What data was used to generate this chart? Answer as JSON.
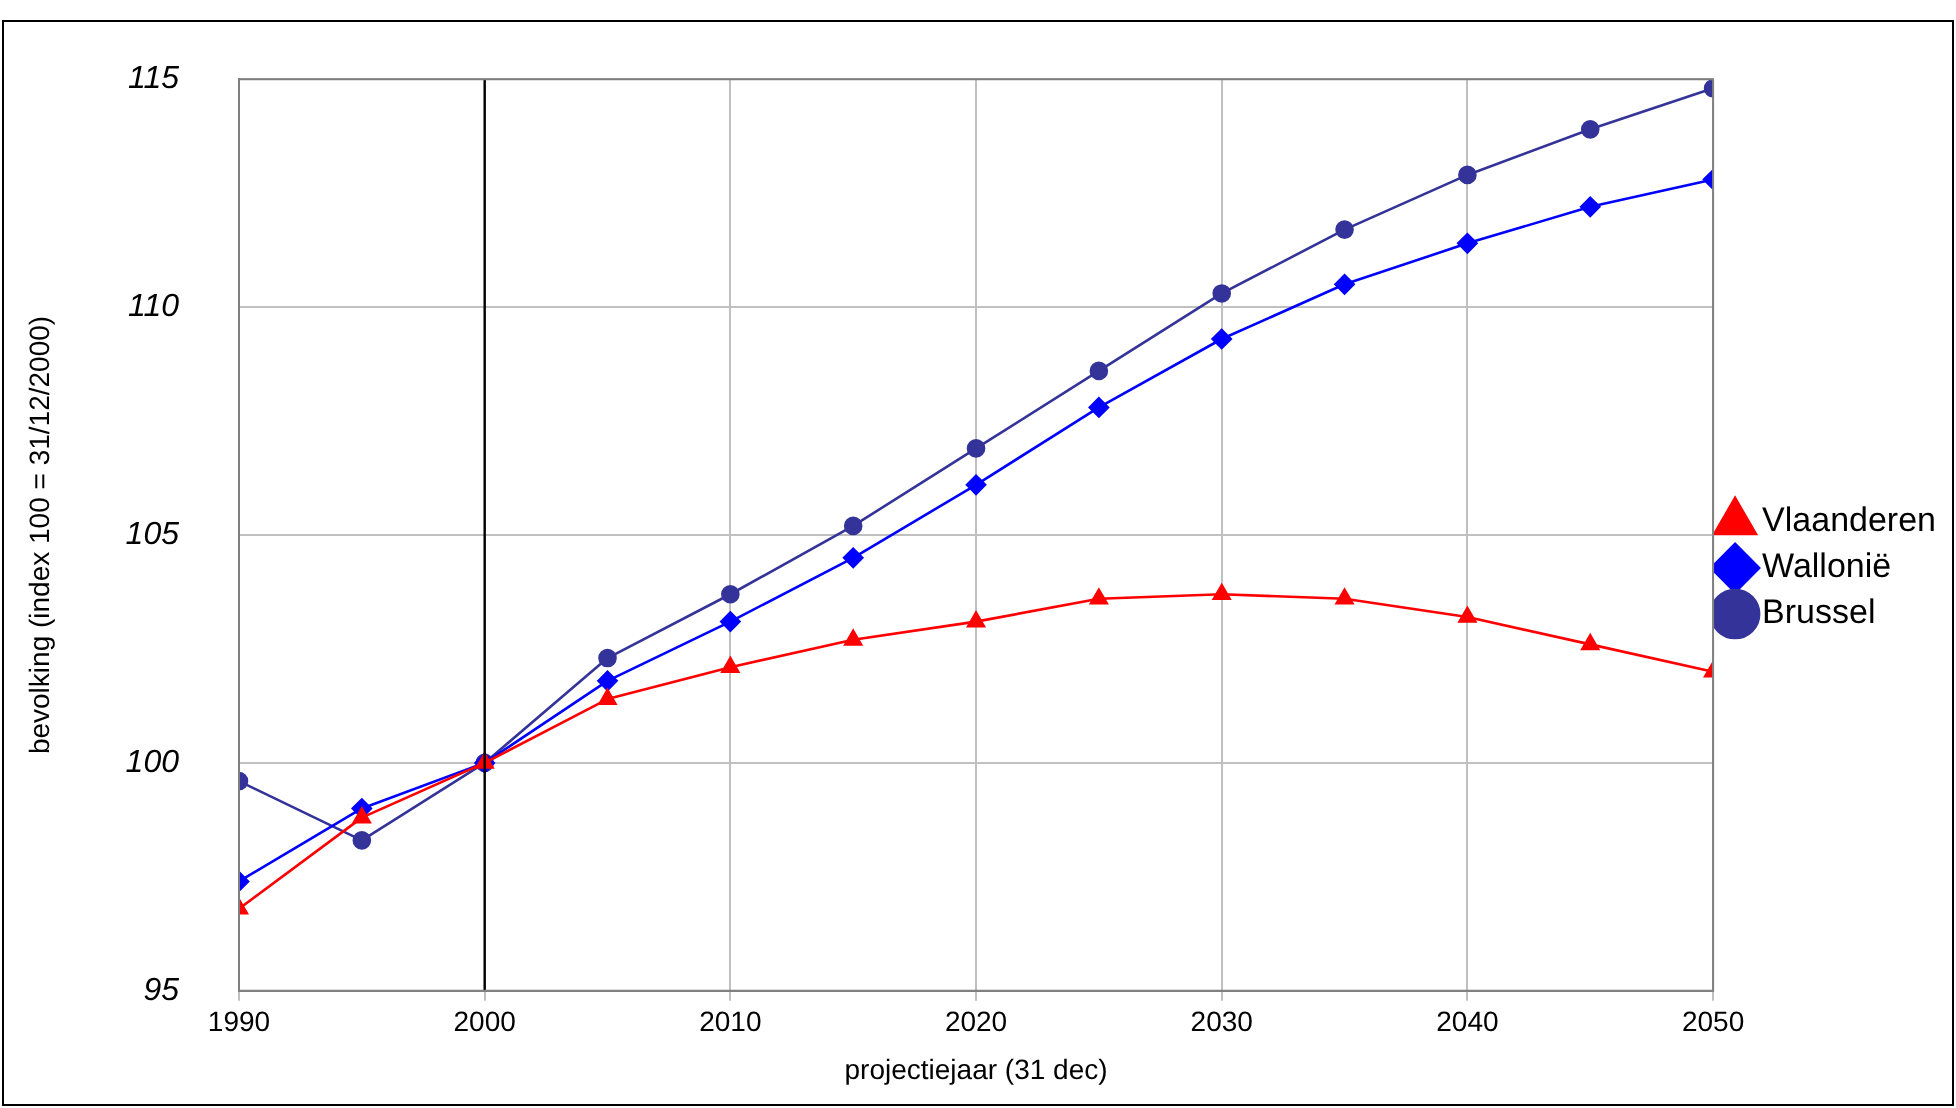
{
  "chart_data": {
    "type": "line",
    "xlabel": "projectiejaar (31 dec)",
    "ylabel": "bevolking (index 100 = 31/12/2000)",
    "x": [
      1990,
      1995,
      2000,
      2005,
      2010,
      2015,
      2020,
      2025,
      2030,
      2035,
      2040,
      2045,
      2050
    ],
    "series": [
      {
        "name": "Vlaanderen",
        "color": "#ff0000",
        "marker": "triangle",
        "values": [
          96.8,
          98.8,
          100,
          101.4,
          102.1,
          102.7,
          103.1,
          103.6,
          103.7,
          103.6,
          103.2,
          102.6,
          102.0
        ]
      },
      {
        "name": "Wallonië",
        "color": "#0000ff",
        "marker": "diamond",
        "values": [
          97.4,
          99.0,
          100,
          101.8,
          103.1,
          104.5,
          106.1,
          107.8,
          109.3,
          110.5,
          111.4,
          112.2,
          112.8
        ]
      },
      {
        "name": "Brussel",
        "color": "#333399",
        "marker": "circle",
        "values": [
          99.6,
          98.3,
          100,
          102.3,
          103.7,
          105.2,
          106.9,
          108.6,
          110.3,
          111.7,
          112.9,
          113.9,
          114.8
        ]
      }
    ],
    "xlim": [
      1990,
      2050
    ],
    "xticks": [
      1990,
      2000,
      2010,
      2020,
      2030,
      2040,
      2050
    ],
    "ylim": [
      95,
      115
    ],
    "yticks": [
      95,
      100,
      105,
      110,
      115
    ],
    "ref_lines": [
      {
        "axis": "x",
        "value": 2000,
        "color": "#000000"
      }
    ],
    "grid": true,
    "legend": "right",
    "line_style": "solid"
  }
}
